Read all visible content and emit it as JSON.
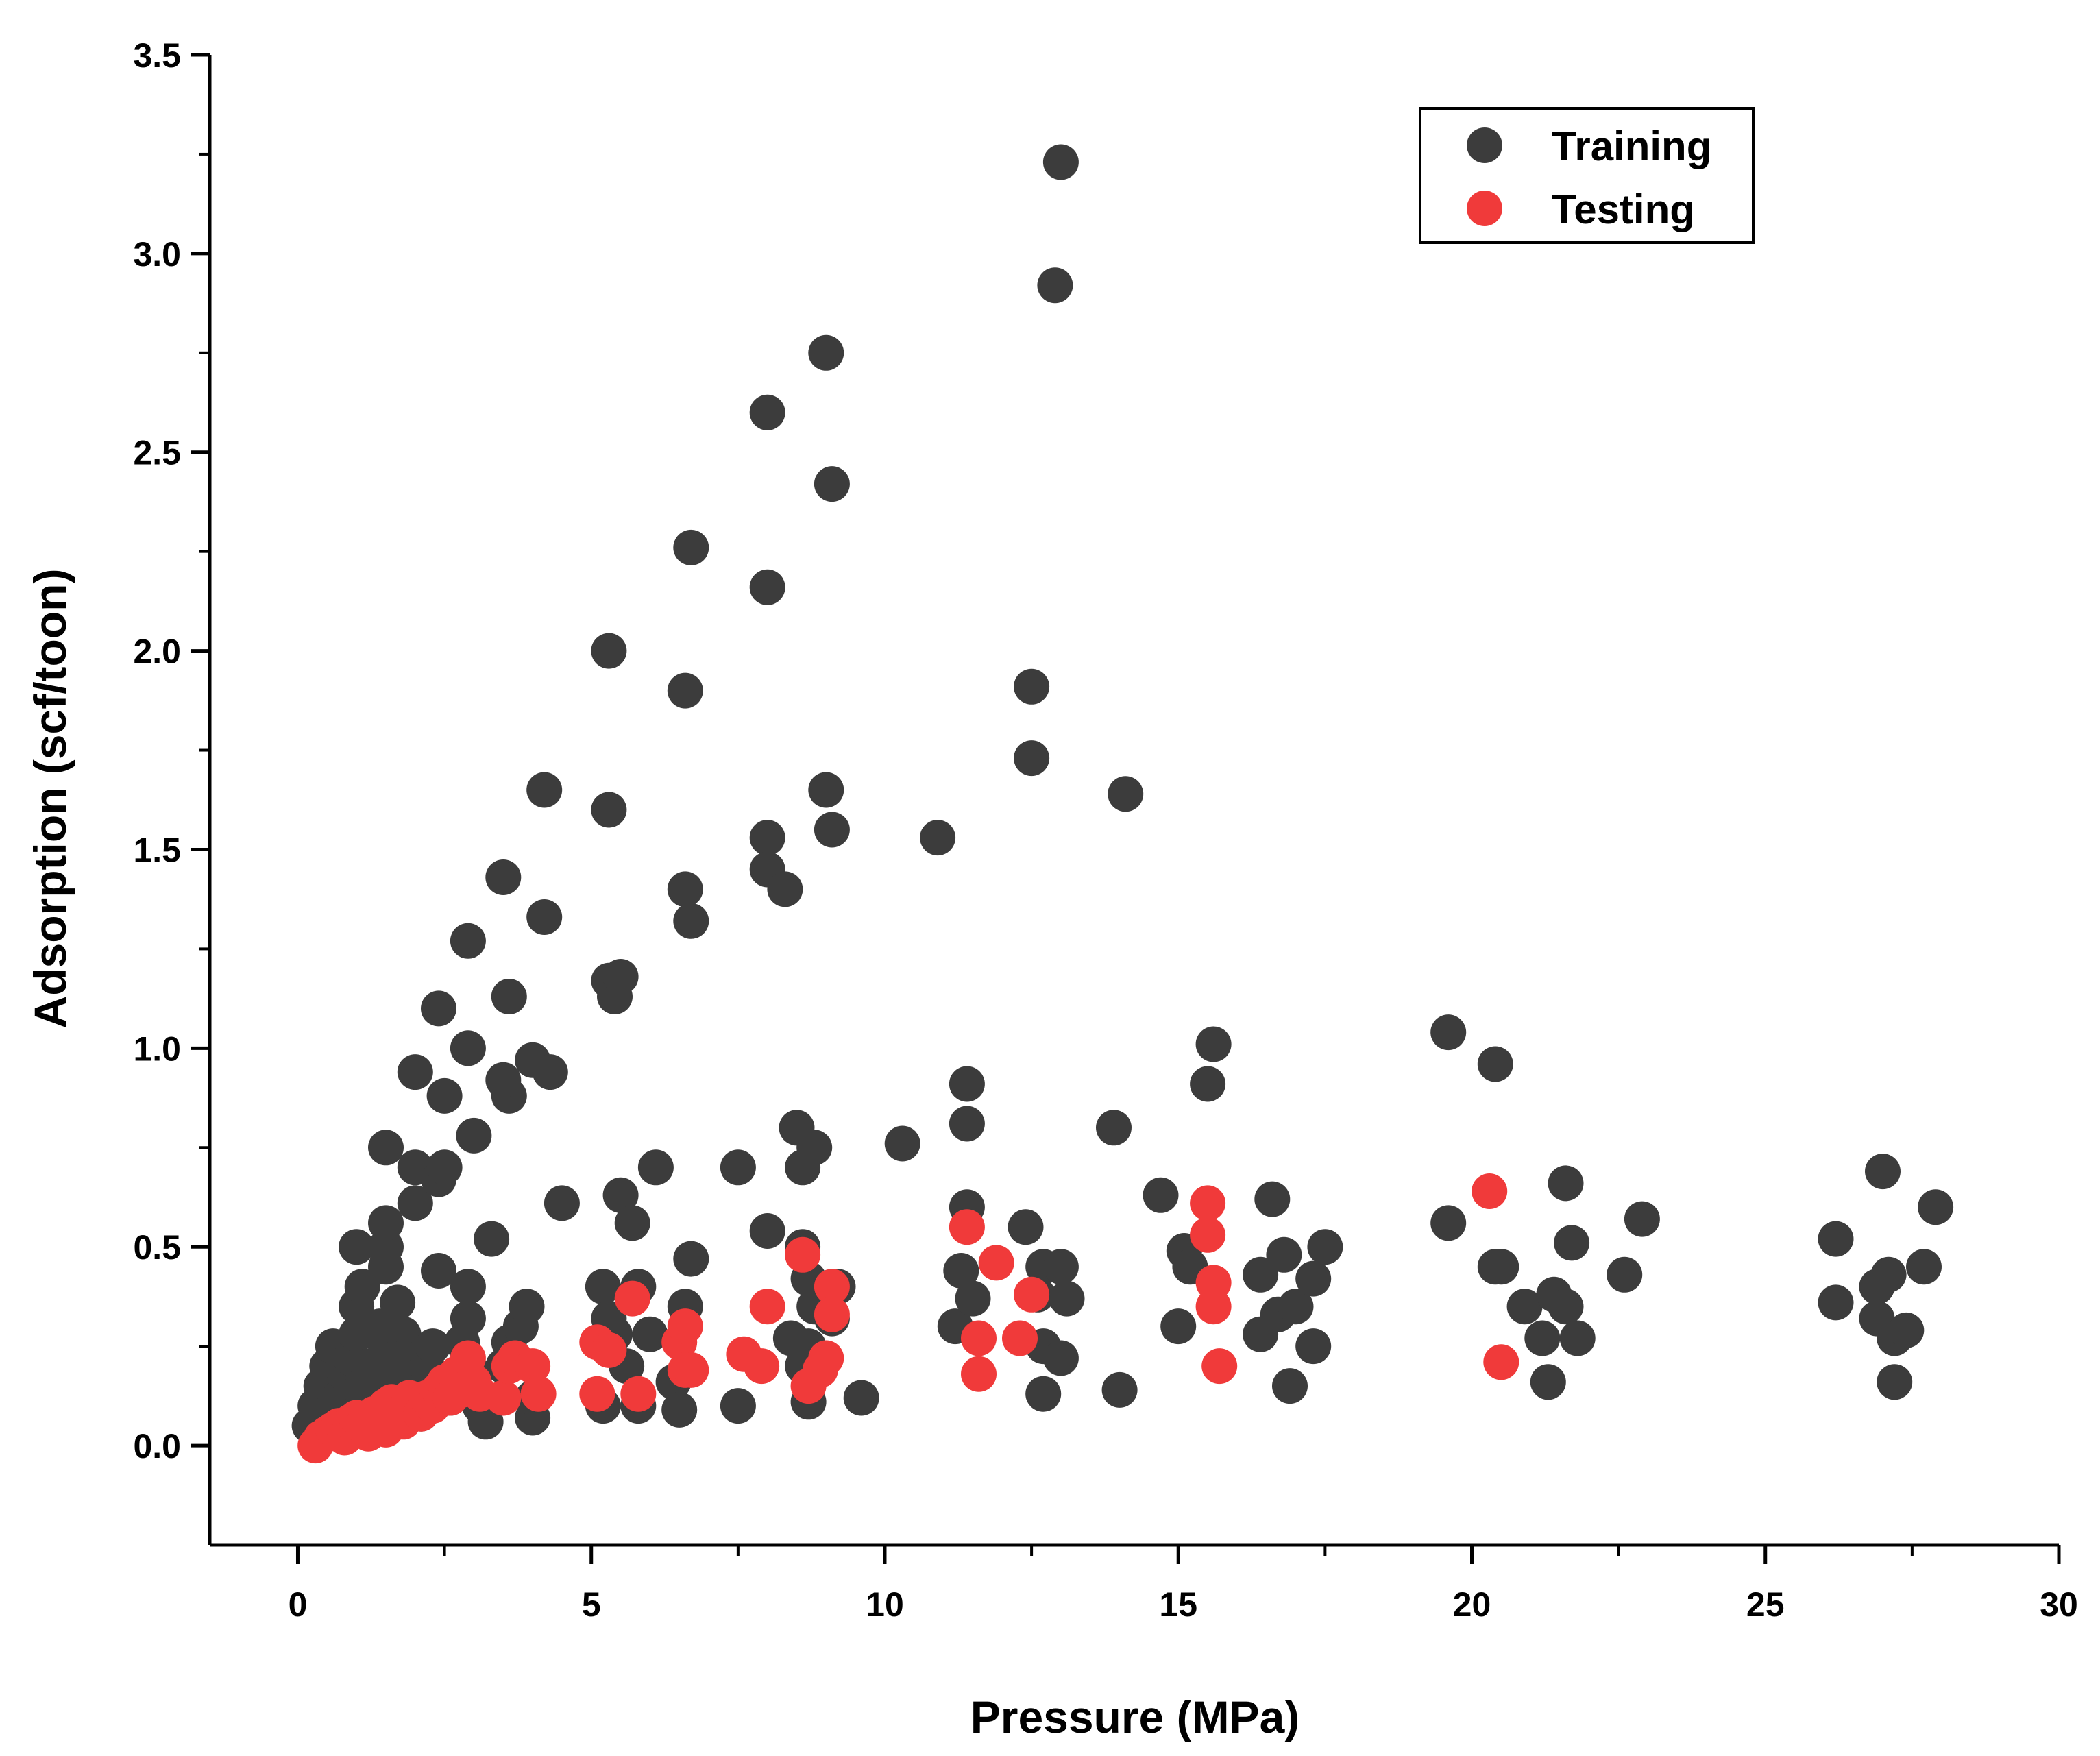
{
  "chart_data": {
    "type": "scatter",
    "title": "",
    "xlabel": "Pressure (MPa)",
    "ylabel": "Adsorption (scf/toon)",
    "xlim": [
      -1.5,
      30
    ],
    "ylim": [
      -0.25,
      3.5
    ],
    "xticks": [
      0,
      5,
      10,
      15,
      20,
      25,
      30
    ],
    "yticks": [
      0.0,
      0.5,
      1.0,
      1.5,
      2.0,
      2.5,
      3.0,
      3.5
    ],
    "xtick_labels": [
      "0",
      "5",
      "10",
      "15",
      "20",
      "25",
      "30"
    ],
    "ytick_labels": [
      "0.0",
      "0.5",
      "1.0",
      "1.5",
      "2.0",
      "2.5",
      "3.0",
      "3.5"
    ],
    "grid": false,
    "legend_position": "top-right",
    "series": [
      {
        "name": "Training",
        "color": "#3c3c3c",
        "points": [
          [
            0.2,
            0.05
          ],
          [
            0.3,
            0.1
          ],
          [
            0.4,
            0.15
          ],
          [
            0.5,
            0.2
          ],
          [
            0.6,
            0.25
          ],
          [
            0.5,
            0.08
          ],
          [
            0.7,
            0.12
          ],
          [
            0.8,
            0.18
          ],
          [
            0.9,
            0.22
          ],
          [
            1.0,
            0.28
          ],
          [
            1.0,
            0.08
          ],
          [
            1.1,
            0.15
          ],
          [
            1.0,
            0.35
          ],
          [
            1.1,
            0.4
          ],
          [
            1.0,
            0.5
          ],
          [
            1.2,
            0.2
          ],
          [
            1.3,
            0.12
          ],
          [
            1.4,
            0.18
          ],
          [
            1.5,
            0.25
          ],
          [
            1.4,
            0.3
          ],
          [
            1.5,
            0.45
          ],
          [
            1.5,
            0.5
          ],
          [
            1.5,
            0.56
          ],
          [
            1.5,
            0.75
          ],
          [
            1.7,
            0.36
          ],
          [
            1.8,
            0.28
          ],
          [
            1.8,
            0.22
          ],
          [
            1.9,
            0.15
          ],
          [
            2.0,
            0.1
          ],
          [
            2.0,
            0.7
          ],
          [
            2.0,
            0.61
          ],
          [
            2.0,
            0.94
          ],
          [
            2.1,
            0.08
          ],
          [
            2.2,
            0.2
          ],
          [
            2.3,
            0.25
          ],
          [
            2.4,
            0.44
          ],
          [
            2.4,
            0.67
          ],
          [
            2.5,
            0.7
          ],
          [
            2.5,
            0.88
          ],
          [
            2.4,
            1.1
          ],
          [
            2.6,
            0.12
          ],
          [
            2.7,
            0.18
          ],
          [
            2.8,
            0.26
          ],
          [
            2.9,
            0.32
          ],
          [
            2.9,
            0.4
          ],
          [
            3.0,
            0.78
          ],
          [
            2.9,
            1.0
          ],
          [
            2.9,
            1.27
          ],
          [
            3.0,
            0.18
          ],
          [
            3.1,
            0.1
          ],
          [
            3.2,
            0.06
          ],
          [
            3.3,
            0.52
          ],
          [
            3.5,
            0.2
          ],
          [
            3.6,
            0.26
          ],
          [
            3.6,
            0.88
          ],
          [
            3.5,
            0.92
          ],
          [
            3.6,
            1.13
          ],
          [
            3.5,
            1.43
          ],
          [
            3.8,
            0.3
          ],
          [
            3.9,
            0.35
          ],
          [
            4.0,
            0.07
          ],
          [
            4.0,
            0.97
          ],
          [
            4.0,
            0.12
          ],
          [
            4.2,
            1.65
          ],
          [
            4.2,
            1.33
          ],
          [
            4.3,
            0.94
          ],
          [
            4.5,
            0.61
          ],
          [
            5.2,
            0.4
          ],
          [
            5.2,
            0.1
          ],
          [
            5.3,
            0.32
          ],
          [
            5.4,
            0.28
          ],
          [
            5.3,
            2.0
          ],
          [
            5.3,
            1.6
          ],
          [
            5.3,
            1.17
          ],
          [
            5.4,
            1.13
          ],
          [
            5.5,
            1.18
          ],
          [
            5.5,
            0.63
          ],
          [
            5.6,
            0.2
          ],
          [
            5.7,
            0.56
          ],
          [
            5.8,
            0.4
          ],
          [
            5.8,
            0.1
          ],
          [
            6.0,
            0.28
          ],
          [
            6.1,
            0.7
          ],
          [
            6.4,
            0.16
          ],
          [
            6.6,
            0.35
          ],
          [
            6.5,
            0.09
          ],
          [
            6.6,
            1.9
          ],
          [
            6.6,
            1.4
          ],
          [
            6.7,
            1.32
          ],
          [
            6.7,
            2.26
          ],
          [
            6.7,
            0.47
          ],
          [
            7.5,
            0.7
          ],
          [
            7.5,
            0.1
          ],
          [
            8.0,
            2.6
          ],
          [
            8.0,
            2.16
          ],
          [
            8.0,
            1.53
          ],
          [
            8.0,
            1.45
          ],
          [
            8.3,
            1.4
          ],
          [
            8.0,
            0.54
          ],
          [
            8.4,
            0.27
          ],
          [
            8.5,
            0.8
          ],
          [
            8.6,
            0.7
          ],
          [
            8.8,
            0.75
          ],
          [
            8.6,
            0.5
          ],
          [
            8.7,
            0.42
          ],
          [
            8.8,
            0.35
          ],
          [
            8.7,
            0.25
          ],
          [
            8.6,
            0.2
          ],
          [
            8.7,
            0.11
          ],
          [
            9.0,
            2.75
          ],
          [
            9.1,
            2.42
          ],
          [
            9.0,
            1.65
          ],
          [
            9.1,
            1.55
          ],
          [
            9.2,
            0.4
          ],
          [
            9.1,
            0.32
          ],
          [
            9.6,
            0.12
          ],
          [
            10.3,
            0.76
          ],
          [
            10.9,
            1.53
          ],
          [
            11.2,
            0.3
          ],
          [
            11.3,
            0.44
          ],
          [
            11.4,
            0.91
          ],
          [
            11.4,
            0.81
          ],
          [
            11.4,
            0.6
          ],
          [
            11.5,
            0.37
          ],
          [
            12.4,
            0.55
          ],
          [
            12.5,
            1.91
          ],
          [
            12.5,
            1.73
          ],
          [
            12.6,
            0.38
          ],
          [
            12.7,
            0.45
          ],
          [
            12.7,
            0.25
          ],
          [
            12.7,
            0.13
          ],
          [
            12.9,
            2.92
          ],
          [
            13.0,
            3.23
          ],
          [
            13.0,
            0.45
          ],
          [
            13.1,
            0.37
          ],
          [
            13.0,
            0.22
          ],
          [
            13.9,
            0.8
          ],
          [
            14.0,
            0.14
          ],
          [
            14.1,
            1.64
          ],
          [
            14.7,
            0.63
          ],
          [
            15.0,
            0.3
          ],
          [
            15.1,
            0.49
          ],
          [
            15.2,
            0.45
          ],
          [
            15.5,
            0.91
          ],
          [
            15.6,
            1.01
          ],
          [
            16.4,
            0.43
          ],
          [
            16.4,
            0.28
          ],
          [
            16.6,
            0.62
          ],
          [
            16.7,
            0.33
          ],
          [
            16.8,
            0.48
          ],
          [
            16.9,
            0.15
          ],
          [
            17.0,
            0.35
          ],
          [
            17.3,
            0.42
          ],
          [
            17.3,
            0.25
          ],
          [
            17.5,
            0.5
          ],
          [
            19.6,
            1.04
          ],
          [
            19.6,
            0.56
          ],
          [
            20.4,
            0.96
          ],
          [
            20.4,
            0.45
          ],
          [
            20.5,
            0.45
          ],
          [
            20.9,
            0.35
          ],
          [
            21.2,
            0.27
          ],
          [
            21.3,
            0.16
          ],
          [
            21.4,
            0.38
          ],
          [
            21.6,
            0.35
          ],
          [
            21.6,
            0.66
          ],
          [
            21.7,
            0.51
          ],
          [
            21.8,
            0.27
          ],
          [
            22.6,
            0.43
          ],
          [
            22.9,
            0.57
          ],
          [
            26.2,
            0.52
          ],
          [
            26.2,
            0.36
          ],
          [
            26.9,
            0.32
          ],
          [
            26.9,
            0.4
          ],
          [
            27.0,
            0.69
          ],
          [
            27.1,
            0.43
          ],
          [
            27.2,
            0.27
          ],
          [
            27.2,
            0.16
          ],
          [
            27.4,
            0.29
          ],
          [
            27.7,
            0.45
          ],
          [
            27.9,
            0.6
          ]
        ]
      },
      {
        "name": "Testing",
        "color": "#f03a3a",
        "points": [
          [
            0.3,
            0.0
          ],
          [
            0.4,
            0.02
          ],
          [
            0.5,
            0.03
          ],
          [
            0.6,
            0.04
          ],
          [
            0.7,
            0.05
          ],
          [
            0.8,
            0.02
          ],
          [
            0.9,
            0.06
          ],
          [
            1.0,
            0.07
          ],
          [
            1.1,
            0.05
          ],
          [
            1.2,
            0.03
          ],
          [
            1.3,
            0.08
          ],
          [
            1.4,
            0.06
          ],
          [
            1.5,
            0.1
          ],
          [
            1.5,
            0.04
          ],
          [
            1.6,
            0.11
          ],
          [
            1.7,
            0.08
          ],
          [
            1.8,
            0.06
          ],
          [
            1.9,
            0.12
          ],
          [
            2.0,
            0.1
          ],
          [
            2.1,
            0.08
          ],
          [
            2.2,
            0.12
          ],
          [
            2.3,
            0.1
          ],
          [
            2.4,
            0.14
          ],
          [
            2.5,
            0.16
          ],
          [
            2.6,
            0.12
          ],
          [
            2.7,
            0.18
          ],
          [
            2.8,
            0.14
          ],
          [
            2.9,
            0.22
          ],
          [
            3.0,
            0.16
          ],
          [
            3.1,
            0.13
          ],
          [
            3.5,
            0.12
          ],
          [
            3.6,
            0.2
          ],
          [
            3.7,
            0.22
          ],
          [
            4.0,
            0.2
          ],
          [
            4.1,
            0.13
          ],
          [
            5.1,
            0.26
          ],
          [
            5.1,
            0.13
          ],
          [
            5.3,
            0.24
          ],
          [
            5.7,
            0.37
          ],
          [
            5.8,
            0.13
          ],
          [
            6.5,
            0.26
          ],
          [
            6.6,
            0.3
          ],
          [
            6.6,
            0.19
          ],
          [
            6.7,
            0.19
          ],
          [
            7.6,
            0.23
          ],
          [
            7.9,
            0.2
          ],
          [
            8.0,
            0.35
          ],
          [
            8.6,
            0.48
          ],
          [
            8.7,
            0.15
          ],
          [
            8.9,
            0.19
          ],
          [
            9.0,
            0.22
          ],
          [
            9.1,
            0.4
          ],
          [
            9.1,
            0.33
          ],
          [
            11.4,
            0.55
          ],
          [
            11.6,
            0.27
          ],
          [
            11.6,
            0.18
          ],
          [
            11.9,
            0.46
          ],
          [
            12.3,
            0.27
          ],
          [
            12.5,
            0.38
          ],
          [
            15.5,
            0.61
          ],
          [
            15.5,
            0.53
          ],
          [
            15.6,
            0.41
          ],
          [
            15.6,
            0.35
          ],
          [
            15.7,
            0.2
          ],
          [
            20.3,
            0.64
          ],
          [
            20.5,
            0.21
          ]
        ]
      }
    ]
  }
}
